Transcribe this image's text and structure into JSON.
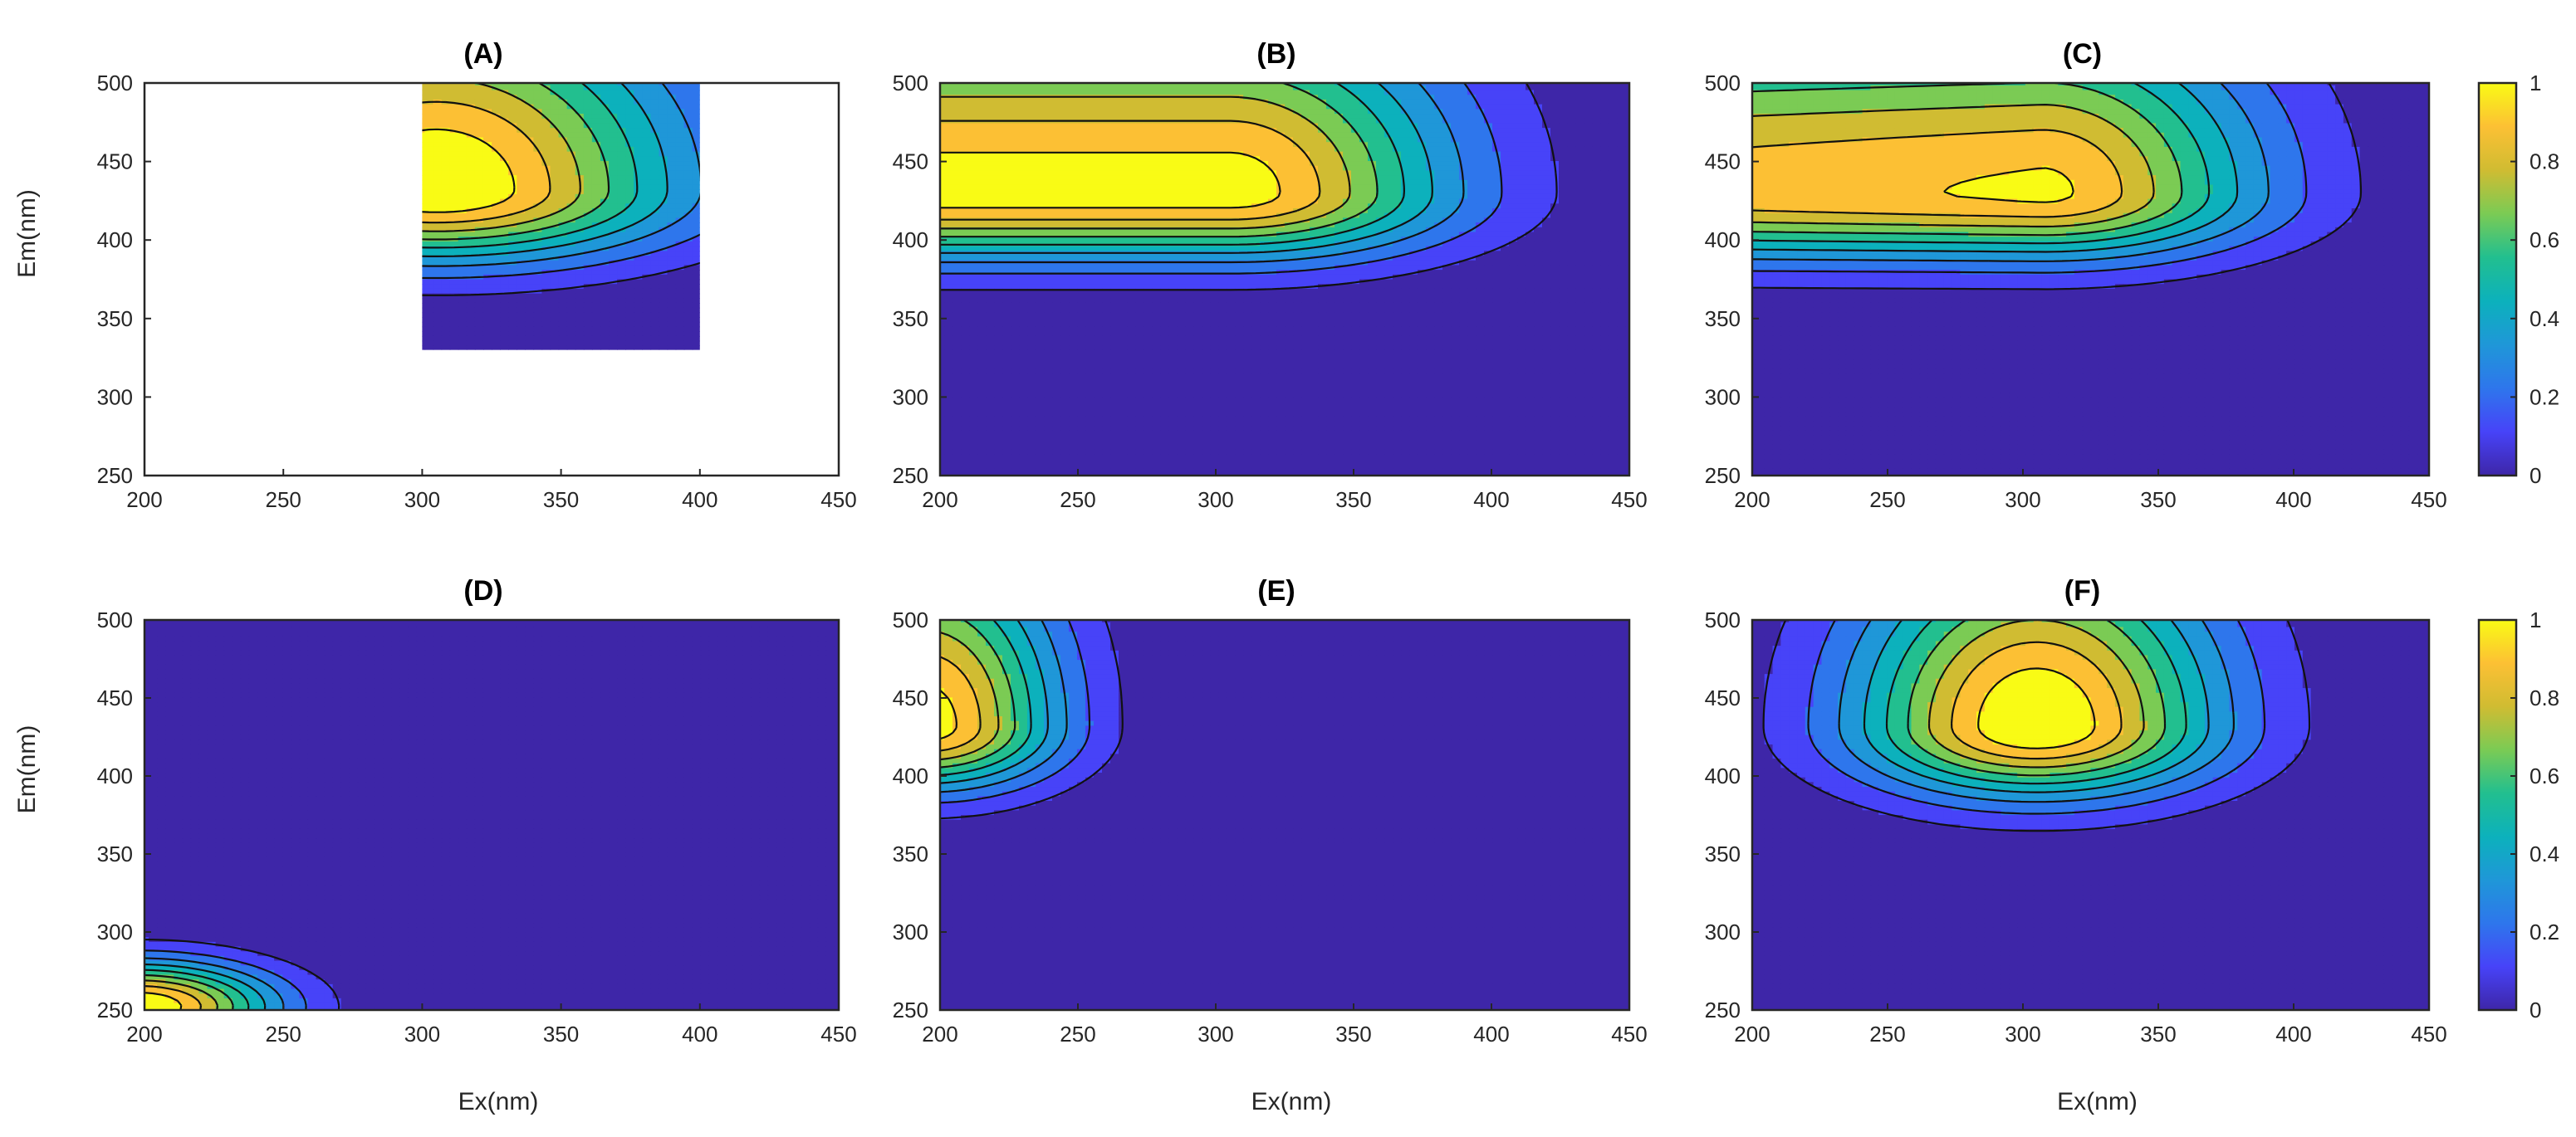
{
  "chart_data": [
    {
      "id": "A",
      "type": "contour",
      "title": "(A)",
      "xlabel": "",
      "ylabel": "Em(nm)",
      "xlim": [
        200,
        450
      ],
      "ylim": [
        250,
        500
      ],
      "xticks": [
        200,
        250,
        300,
        350,
        400,
        450
      ],
      "yticks": [
        250,
        300,
        350,
        400,
        450,
        500
      ],
      "data_region": {
        "ex": [
          300,
          400
        ],
        "em": [
          330,
          500
        ]
      },
      "peaks": [
        {
          "ex": 305,
          "em": 432,
          "height": 1.0,
          "ex_width": 55,
          "em_width_low": 28,
          "em_width_high": 75,
          "ex_plateau_low": 0
        }
      ],
      "colorbar": false
    },
    {
      "id": "B",
      "type": "contour",
      "title": "(B)",
      "xlabel": "",
      "ylabel": "",
      "xlim": [
        200,
        450
      ],
      "ylim": [
        250,
        500
      ],
      "xticks": [
        200,
        250,
        300,
        350,
        400,
        450
      ],
      "yticks": [
        250,
        300,
        350,
        400,
        450,
        500
      ],
      "data_region": {
        "ex": [
          200,
          450
        ],
        "em": [
          250,
          500
        ]
      },
      "peaks": [
        {
          "ex": 305,
          "em": 430,
          "height": 0.95,
          "ex_width": 50,
          "em_width_low": 26,
          "em_width_high": 70,
          "ex_plateau_low": 200
        }
      ],
      "colorbar": false
    },
    {
      "id": "C",
      "type": "contour",
      "title": "(C)",
      "xlabel": "",
      "ylabel": "",
      "xlim": [
        200,
        450
      ],
      "ylim": [
        250,
        500
      ],
      "xticks": [
        200,
        250,
        300,
        350,
        400,
        450
      ],
      "yticks": [
        250,
        300,
        350,
        400,
        450,
        500
      ],
      "data_region": {
        "ex": [
          200,
          450
        ],
        "em": [
          250,
          500
        ]
      },
      "peaks": [
        {
          "ex": 307,
          "em": 430,
          "height": 0.92,
          "ex_width": 50,
          "em_width_low": 26,
          "em_width_high": 68,
          "ex_plateau_low": 200,
          "plateau_slope": 0.0006
        }
      ],
      "colorbar": true
    },
    {
      "id": "D",
      "type": "contour",
      "title": "(D)",
      "xlabel": "Ex(nm)",
      "ylabel": "Em(nm)",
      "xlim": [
        200,
        450
      ],
      "ylim": [
        250,
        500
      ],
      "xticks": [
        200,
        250,
        300,
        350,
        400,
        450
      ],
      "yticks": [
        250,
        300,
        350,
        400,
        450,
        500
      ],
      "data_region": {
        "ex": [
          200,
          450
        ],
        "em": [
          250,
          500
        ]
      },
      "peaks": [
        {
          "ex": 198,
          "em": 252,
          "height": 1.0,
          "ex_width": 30,
          "em_width_low": 18,
          "em_width_high": 18,
          "ex_plateau_low": 0
        }
      ],
      "colorbar": false
    },
    {
      "id": "E",
      "type": "contour",
      "title": "(E)",
      "xlabel": "Ex(nm)",
      "ylabel": "",
      "xlim": [
        200,
        450
      ],
      "ylim": [
        250,
        500
      ],
      "xticks": [
        200,
        250,
        300,
        350,
        400,
        450
      ],
      "yticks": [
        250,
        300,
        350,
        400,
        450,
        500
      ],
      "data_region": {
        "ex": [
          200,
          450
        ],
        "em": [
          250,
          500
        ]
      },
      "peaks": [
        {
          "ex": 195,
          "em": 432,
          "height": 0.95,
          "ex_width": 30,
          "em_width_low": 25,
          "em_width_high": 70,
          "ex_plateau_low": 0
        }
      ],
      "colorbar": false
    },
    {
      "id": "F",
      "type": "contour",
      "title": "(F)",
      "xlabel": "Ex(nm)",
      "ylabel": "",
      "xlim": [
        200,
        450
      ],
      "ylim": [
        250,
        500
      ],
      "xticks": [
        200,
        250,
        300,
        350,
        400,
        450
      ],
      "yticks": [
        250,
        300,
        350,
        400,
        450,
        500
      ],
      "data_region": {
        "ex": [
          200,
          450
        ],
        "em": [
          250,
          500
        ]
      },
      "peaks": [
        {
          "ex": 305,
          "em": 432,
          "height": 1.0,
          "ex_width": 42,
          "em_width_low": 28,
          "em_width_high": 72,
          "ex_plateau_low": 0
        }
      ],
      "colorbar": true
    }
  ],
  "contour_levels": [
    0.1,
    0.2,
    0.3,
    0.4,
    0.5,
    0.6,
    0.7,
    0.8,
    0.9
  ],
  "colorbar": {
    "ticks": [
      0,
      0.2,
      0.4,
      0.6,
      0.8,
      1
    ],
    "tick_labels": [
      "0",
      "0.2",
      "0.4",
      "0.6",
      "0.8",
      "1"
    ],
    "range": [
      0,
      1
    ]
  },
  "colormap": [
    "#3e26a8",
    "#4743f8",
    "#2e76ec",
    "#1f97d8",
    "#0cb1bc",
    "#22bf8f",
    "#7bcb54",
    "#d0bc32",
    "#fcc034",
    "#f9fb15"
  ]
}
